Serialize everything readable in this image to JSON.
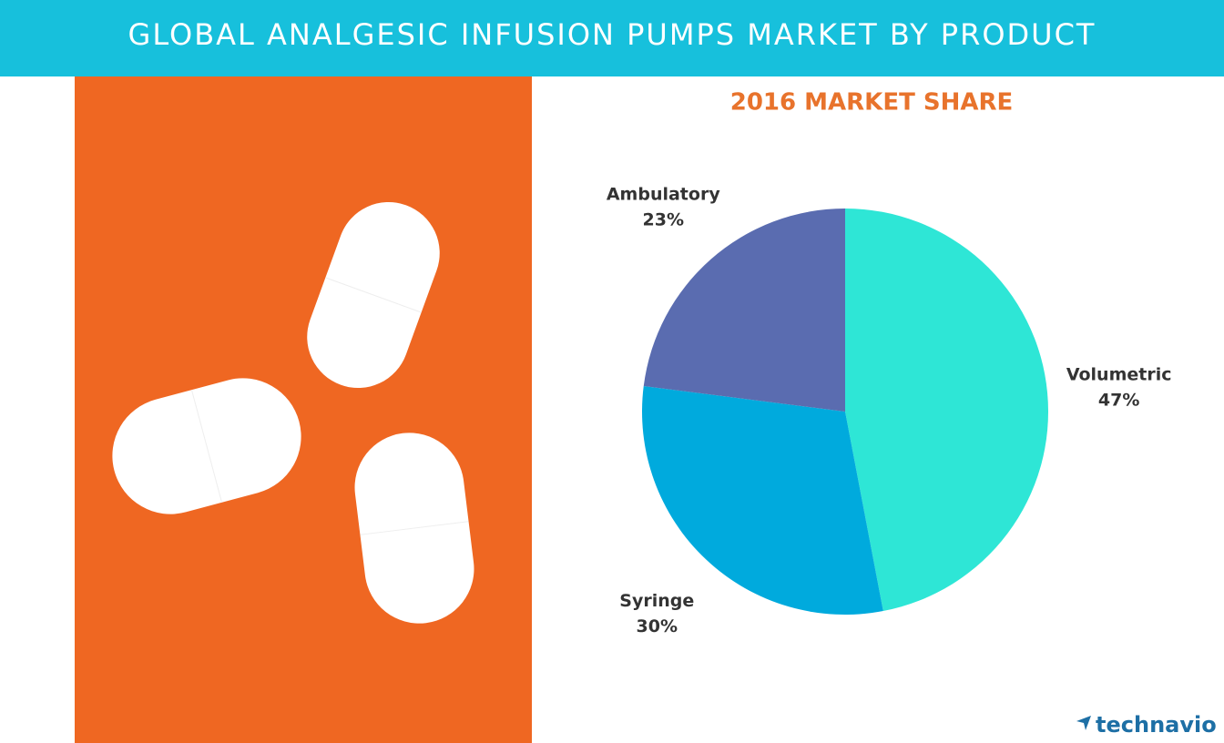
{
  "header": {
    "title": "GLOBAL ANALGESIC INFUSION PUMPS MARKET BY PRODUCT"
  },
  "chart_data": {
    "type": "pie",
    "title": "2016 MARKET SHARE",
    "categories": [
      "Volumetric",
      "Syringe",
      "Ambulatory"
    ],
    "values": [
      47,
      30,
      23
    ],
    "value_labels": [
      "47%",
      "30%",
      "23%"
    ],
    "colors": [
      "#2ee6d6",
      "#00aadd",
      "#5a6cb0"
    ]
  },
  "logo": "technavio"
}
